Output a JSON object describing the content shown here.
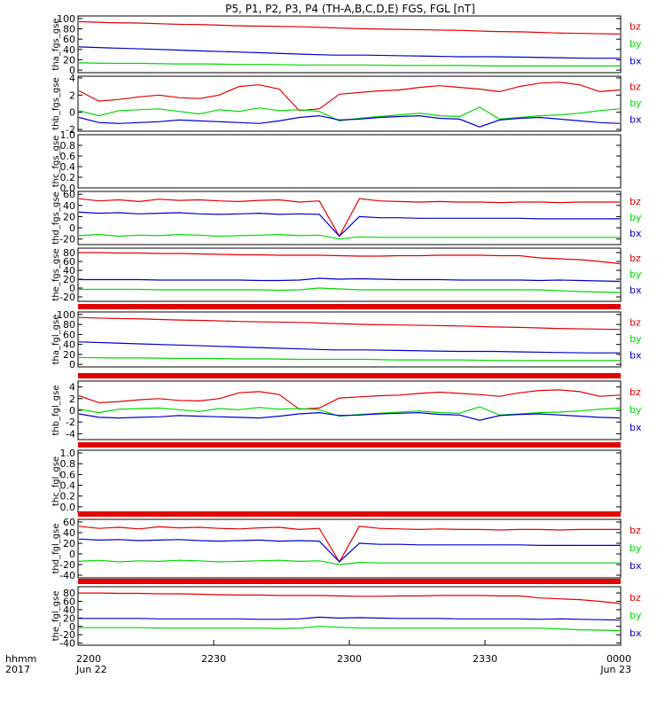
{
  "title": "P5, P1, P2, P3, P4 (TH-A,B,C,D,E) FGS, FGL [nT]",
  "time_axis": {
    "row_label_1": "hhmm",
    "row_label_2": "2017",
    "ticks": [
      {
        "hhmm": "2200",
        "date": "Jun 22"
      },
      {
        "hhmm": "2230",
        "date": ""
      },
      {
        "hhmm": "2300",
        "date": ""
      },
      {
        "hhmm": "2330",
        "date": ""
      },
      {
        "hhmm": "0000",
        "date": "Jun 23"
      }
    ]
  },
  "colors": {
    "bz": "#e00000",
    "by": "#00d800",
    "bx": "#0000c8",
    "frame": "#000000"
  },
  "chart_data": [
    {
      "type": "line",
      "ylabel": "tha_fgs_gse",
      "ylim": [
        -5,
        105
      ],
      "yticks": [
        "100",
        "80",
        "60",
        "40",
        "20",
        "0"
      ],
      "ytick_values": [
        100,
        80,
        60,
        40,
        20,
        0
      ],
      "legend": [
        "bz",
        "by",
        "bx"
      ],
      "series": [
        {
          "name": "bz",
          "values": [
            94,
            92,
            91,
            89,
            88,
            86,
            85,
            84,
            82,
            80,
            79,
            78,
            77,
            75,
            74,
            72,
            71,
            70
          ]
        },
        {
          "name": "bx",
          "values": [
            45,
            43,
            41,
            39,
            37,
            35,
            33,
            31,
            29,
            29,
            28,
            27,
            26,
            26,
            25,
            24,
            23,
            23
          ]
        },
        {
          "name": "by",
          "values": [
            14,
            13,
            13,
            12,
            12,
            11,
            11,
            10,
            10,
            10,
            9,
            9,
            9,
            8,
            8,
            8,
            8,
            8
          ]
        }
      ]
    },
    {
      "type": "line",
      "ylabel": "thb_fgs_gse",
      "ylim": [
        -2.2,
        4.2
      ],
      "yticks": [
        "4",
        "2",
        "0",
        "-2"
      ],
      "ytick_values": [
        4,
        2,
        0,
        -2
      ],
      "legend": [
        "bz",
        "by",
        "bx"
      ],
      "series": [
        {
          "name": "bz",
          "values": [
            2.5,
            1.3,
            1.5,
            1.8,
            2.0,
            1.7,
            1.6,
            2.0,
            3.0,
            3.2,
            2.7,
            0.2,
            0.4,
            2.1,
            2.3,
            2.5,
            2.6,
            2.9,
            3.1,
            2.9,
            2.7,
            2.4,
            3.0,
            3.4,
            3.5,
            3.2,
            2.4,
            2.6
          ]
        },
        {
          "name": "by",
          "values": [
            0.2,
            -0.4,
            0.2,
            0.3,
            0.4,
            0.1,
            -0.2,
            0.3,
            0.1,
            0.5,
            0.2,
            0.3,
            0.1,
            -1.0,
            -0.7,
            -0.5,
            -0.3,
            -0.1,
            -0.4,
            -0.5,
            0.6,
            -0.8,
            -0.6,
            -0.4,
            -0.3,
            -0.1,
            0.2,
            0.4
          ]
        },
        {
          "name": "bx",
          "values": [
            -0.6,
            -1.2,
            -1.3,
            -1.2,
            -1.1,
            -0.9,
            -1.0,
            -1.1,
            -1.2,
            -1.3,
            -1.0,
            -0.6,
            -0.4,
            -0.9,
            -0.8,
            -0.6,
            -0.5,
            -0.4,
            -0.7,
            -0.8,
            -1.7,
            -0.9,
            -0.7,
            -0.6,
            -0.8,
            -1.0,
            -1.2,
            -1.3
          ]
        }
      ]
    },
    {
      "type": "line",
      "ylabel": "thc_fgs_gse",
      "ylim": [
        0,
        1
      ],
      "yticks": [
        "1.0",
        "0.8",
        "0.6",
        "0.4",
        "0.2",
        "0.0"
      ],
      "ytick_values": [
        1,
        0.8,
        0.6,
        0.4,
        0.2,
        0
      ],
      "legend": [],
      "series": []
    },
    {
      "type": "line",
      "ylabel": "thd_fgs_gse",
      "ylim": [
        -30,
        65
      ],
      "yticks": [
        "60",
        "40",
        "20",
        "0",
        "-20"
      ],
      "ytick_values": [
        60,
        40,
        20,
        0,
        -20
      ],
      "legend": [
        "bz",
        "by",
        "bx"
      ],
      "series": [
        {
          "name": "bz",
          "values": [
            52,
            48,
            50,
            47,
            51,
            49,
            50,
            48,
            47,
            49,
            50,
            46,
            48,
            -15,
            52,
            48,
            47,
            46,
            47,
            46,
            46,
            45,
            46,
            46,
            45,
            46,
            46,
            46
          ]
        },
        {
          "name": "bx",
          "values": [
            28,
            26,
            27,
            25,
            26,
            27,
            25,
            24,
            25,
            26,
            24,
            25,
            24,
            -15,
            20,
            18,
            18,
            17,
            17,
            17,
            17,
            17,
            17,
            16,
            16,
            16,
            16,
            16
          ]
        },
        {
          "name": "by",
          "values": [
            -14,
            -12,
            -15,
            -13,
            -14,
            -12,
            -13,
            -15,
            -14,
            -13,
            -12,
            -14,
            -13,
            -20,
            -16,
            -17,
            -17,
            -17,
            -17,
            -17,
            -17,
            -17,
            -17,
            -17,
            -17,
            -17,
            -17,
            -17
          ]
        }
      ]
    },
    {
      "type": "line",
      "ylabel": "the_fgs_gse",
      "ylim": [
        -30,
        90
      ],
      "yticks": [
        "80",
        "60",
        "40",
        "20",
        "0",
        "-20"
      ],
      "ytick_values": [
        80,
        60,
        40,
        20,
        0,
        -20
      ],
      "legend": [
        "bz",
        "by",
        "bx"
      ],
      "series": [
        {
          "name": "bz",
          "values": [
            80,
            80,
            79,
            79,
            78,
            78,
            77,
            76,
            75,
            75,
            74,
            74,
            74,
            73,
            72,
            72,
            73,
            73,
            74,
            74,
            74,
            73,
            73,
            68,
            66,
            64,
            60,
            55
          ]
        },
        {
          "name": "bx",
          "values": [
            19,
            19,
            19,
            19,
            18,
            18,
            18,
            18,
            18,
            17,
            17,
            18,
            22,
            20,
            21,
            20,
            19,
            19,
            19,
            18,
            18,
            18,
            18,
            17,
            18,
            17,
            16,
            15
          ]
        },
        {
          "name": "by",
          "values": [
            -3,
            -3,
            -3,
            -3,
            -4,
            -4,
            -4,
            -4,
            -4,
            -4,
            -5,
            -4,
            0,
            -2,
            -4,
            -4,
            -4,
            -4,
            -4,
            -4,
            -4,
            -4,
            -4,
            -4,
            -6,
            -8,
            -9,
            -10
          ]
        }
      ]
    },
    {
      "type": "line",
      "ylabel": "tha_fgl_gse",
      "ylim": [
        -5,
        105
      ],
      "yticks": [
        "100",
        "80",
        "60",
        "40",
        "20",
        "0"
      ],
      "ytick_values": [
        100,
        80,
        60,
        40,
        20,
        0
      ],
      "legend": [
        "bz",
        "by",
        "bx"
      ],
      "series": [
        {
          "name": "bz",
          "values": [
            94,
            92,
            91,
            89,
            88,
            86,
            85,
            84,
            82,
            80,
            79,
            78,
            77,
            75,
            74,
            72,
            71,
            70
          ]
        },
        {
          "name": "bx",
          "values": [
            45,
            43,
            41,
            39,
            37,
            35,
            33,
            31,
            29,
            29,
            28,
            27,
            26,
            26,
            25,
            24,
            23,
            23
          ]
        },
        {
          "name": "by",
          "values": [
            14,
            13,
            13,
            12,
            12,
            11,
            11,
            10,
            10,
            10,
            9,
            9,
            9,
            8,
            8,
            8,
            8,
            8
          ]
        }
      ]
    },
    {
      "type": "line",
      "ylabel": "thb_fgl_gse",
      "ylim": [
        -5,
        5
      ],
      "yticks": [
        "4",
        "2",
        "0",
        "-2",
        "-4"
      ],
      "ytick_values": [
        4,
        2,
        0,
        -2,
        -4
      ],
      "legend": [
        "bz",
        "by",
        "bx"
      ],
      "series": [
        {
          "name": "bz",
          "values": [
            2.5,
            1.3,
            1.5,
            1.8,
            2.0,
            1.7,
            1.6,
            2.0,
            3.0,
            3.2,
            2.7,
            0.2,
            0.4,
            2.1,
            2.3,
            2.5,
            2.6,
            2.9,
            3.1,
            2.9,
            2.7,
            2.4,
            3.0,
            3.4,
            3.5,
            3.2,
            2.4,
            2.6
          ]
        },
        {
          "name": "by",
          "values": [
            0.2,
            -0.4,
            0.2,
            0.3,
            0.4,
            0.1,
            -0.2,
            0.3,
            0.1,
            0.5,
            0.2,
            0.3,
            0.1,
            -1.0,
            -0.7,
            -0.5,
            -0.3,
            -0.1,
            -0.4,
            -0.5,
            0.6,
            -0.8,
            -0.6,
            -0.4,
            -0.3,
            -0.1,
            0.2,
            0.4
          ]
        },
        {
          "name": "bx",
          "values": [
            -0.6,
            -1.2,
            -1.3,
            -1.2,
            -1.1,
            -0.9,
            -1.0,
            -1.1,
            -1.2,
            -1.3,
            -1.0,
            -0.6,
            -0.4,
            -0.9,
            -0.8,
            -0.6,
            -0.5,
            -0.4,
            -0.7,
            -0.8,
            -1.7,
            -0.9,
            -0.7,
            -0.6,
            -0.8,
            -1.0,
            -1.2,
            -1.3
          ]
        }
      ]
    },
    {
      "type": "line",
      "ylabel": "thc_fgl_gse",
      "ylim": [
        -0.1,
        1.05
      ],
      "yticks": [
        "1.0",
        "0.8",
        "0.6",
        "0.4",
        "0.2",
        "0.0"
      ],
      "ytick_values": [
        1,
        0.8,
        0.6,
        0.4,
        0.2,
        0
      ],
      "legend": [],
      "series": []
    },
    {
      "type": "line",
      "ylabel": "thd_fgl_gse",
      "ylim": [
        -45,
        65
      ],
      "yticks": [
        "60",
        "40",
        "20",
        "0",
        "-20",
        "-40"
      ],
      "ytick_values": [
        60,
        40,
        20,
        0,
        -20,
        -40
      ],
      "legend": [
        "bz",
        "by",
        "bx"
      ],
      "series": [
        {
          "name": "bz",
          "values": [
            52,
            48,
            50,
            47,
            51,
            49,
            50,
            48,
            47,
            49,
            50,
            46,
            48,
            -15,
            52,
            48,
            47,
            46,
            47,
            46,
            46,
            45,
            46,
            46,
            45,
            46,
            46,
            46
          ]
        },
        {
          "name": "bx",
          "values": [
            28,
            26,
            27,
            25,
            26,
            27,
            25,
            24,
            25,
            26,
            24,
            25,
            24,
            -15,
            20,
            18,
            18,
            17,
            17,
            17,
            17,
            17,
            17,
            16,
            16,
            16,
            16,
            16
          ]
        },
        {
          "name": "by",
          "values": [
            -14,
            -12,
            -15,
            -13,
            -14,
            -12,
            -13,
            -15,
            -14,
            -13,
            -12,
            -14,
            -13,
            -20,
            -16,
            -17,
            -17,
            -17,
            -17,
            -17,
            -17,
            -17,
            -17,
            -17,
            -17,
            -17,
            -17,
            -17
          ]
        }
      ]
    },
    {
      "type": "line",
      "ylabel": "the_fgl_gse",
      "ylim": [
        -45,
        95
      ],
      "yticks": [
        "80",
        "60",
        "40",
        "20",
        "0",
        "-20",
        "-40"
      ],
      "ytick_values": [
        80,
        60,
        40,
        20,
        0,
        -20,
        -40
      ],
      "legend": [
        "bz",
        "by",
        "bx"
      ],
      "series": [
        {
          "name": "bz",
          "values": [
            80,
            80,
            79,
            79,
            78,
            78,
            77,
            76,
            75,
            75,
            74,
            74,
            74,
            73,
            72,
            72,
            73,
            73,
            74,
            74,
            74,
            73,
            73,
            68,
            66,
            64,
            60,
            55
          ]
        },
        {
          "name": "bx",
          "values": [
            19,
            19,
            19,
            19,
            18,
            18,
            18,
            18,
            18,
            17,
            17,
            18,
            22,
            20,
            21,
            20,
            19,
            19,
            19,
            18,
            18,
            18,
            18,
            17,
            18,
            17,
            16,
            15
          ]
        },
        {
          "name": "by",
          "values": [
            -3,
            -3,
            -3,
            -3,
            -4,
            -4,
            -4,
            -4,
            -4,
            -4,
            -5,
            -4,
            0,
            -2,
            -4,
            -4,
            -4,
            -4,
            -4,
            -4,
            -4,
            -4,
            -4,
            -4,
            -6,
            -8,
            -9,
            -10
          ]
        }
      ]
    }
  ]
}
